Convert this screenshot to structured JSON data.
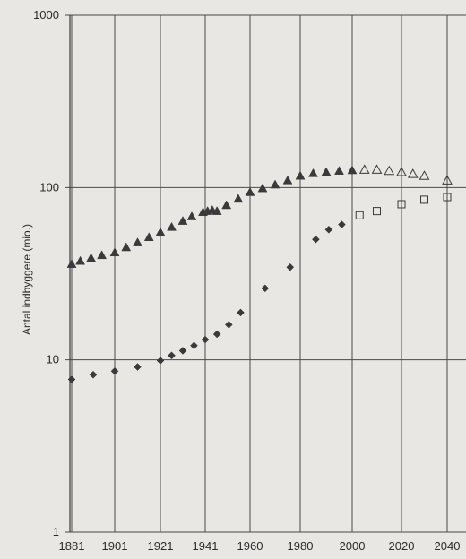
{
  "chart_data": {
    "type": "scatter",
    "title": "",
    "xlabel": "",
    "ylabel": "Antal indbyggere (mio.)",
    "y_scale": "log",
    "ylim": [
      1,
      1000
    ],
    "xlim": [
      1881,
      2045
    ],
    "grid": true,
    "x_ticks": [
      "1881",
      "1901",
      "1921",
      "1941",
      "1960",
      "1980",
      "2000",
      "2020",
      "2040"
    ],
    "y_ticks": [
      "1",
      "10",
      "100",
      "1000"
    ],
    "series": [
      {
        "marker": "filled-triangle",
        "color": "#3a3a3a",
        "x": [
          1881,
          1885,
          1890,
          1895,
          1901,
          1906,
          1911,
          1916,
          1921,
          1926,
          1931,
          1935,
          1940,
          1942,
          1944,
          1946,
          1950,
          1955,
          1960,
          1965,
          1970,
          1975,
          1980,
          1985,
          1990,
          1995,
          2000
        ],
        "values": [
          36,
          37.5,
          39,
          40.5,
          42,
          45,
          48,
          51.5,
          55,
          59,
          64,
          68,
          72,
          73,
          74,
          73,
          79,
          86,
          94,
          99,
          104,
          110,
          117,
          121,
          123,
          125,
          126
        ]
      },
      {
        "marker": "hollow-triangle",
        "color": "#3a3a3a",
        "x": [
          2005,
          2010,
          2015,
          2020,
          2025,
          2030,
          2040
        ],
        "values": [
          127,
          127,
          125,
          123,
          120,
          117,
          110
        ]
      },
      {
        "marker": "filled-diamond",
        "color": "#3a3a3a",
        "x": [
          1881,
          1891,
          1901,
          1911,
          1921,
          1926,
          1931,
          1936,
          1941,
          1946,
          1951,
          1956,
          1966,
          1976,
          1986,
          1991,
          1996
        ],
        "values": [
          7.7,
          8.2,
          8.6,
          9.1,
          9.9,
          10.6,
          11.3,
          12.1,
          13.1,
          14.1,
          16,
          18.8,
          26,
          34.5,
          50,
          57,
          61
        ]
      },
      {
        "marker": "hollow-square",
        "color": "#3a3a3a",
        "x": [
          2003,
          2010,
          2020,
          2030,
          2040
        ],
        "values": [
          69,
          73,
          80,
          85,
          88
        ]
      }
    ]
  }
}
